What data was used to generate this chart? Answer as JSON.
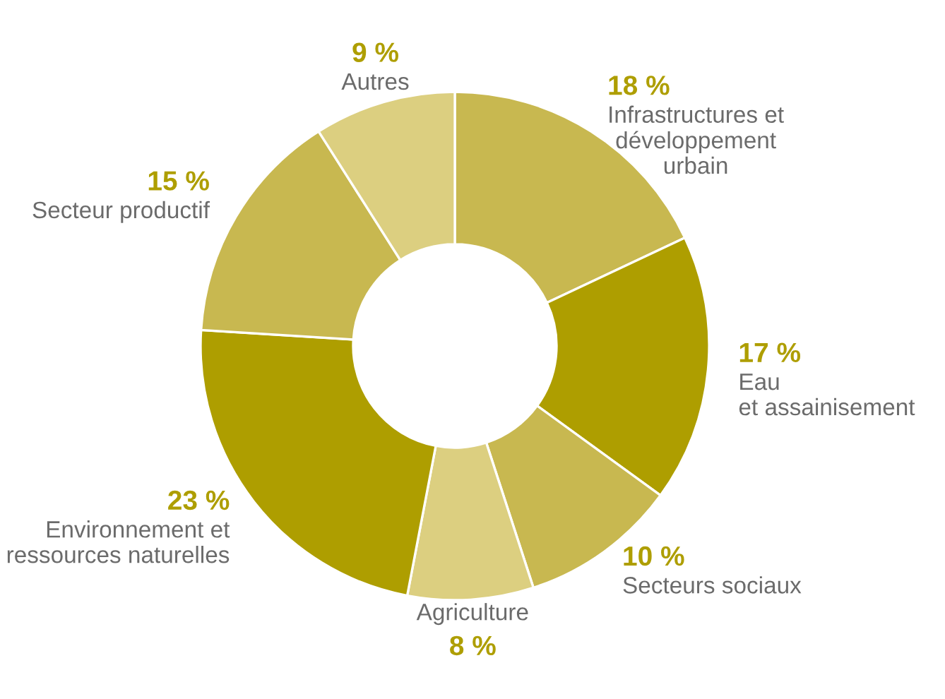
{
  "chart_data": {
    "type": "donut",
    "categories": [
      "Infrastructures et\ndéveloppement\nurbain",
      "Eau\net assainisement",
      "Secteurs sociaux",
      "Agriculture",
      "Environnement et\nressources naturelles",
      "Secteur productif",
      "Autres"
    ],
    "values": [
      18,
      17,
      10,
      8,
      23,
      15,
      9
    ],
    "value_labels": [
      "18 %",
      "17 %",
      "10 %",
      "8 %",
      "23 %",
      "15 %",
      "9 %"
    ],
    "colors": [
      "#c8b850",
      "#ae9e00",
      "#c8b850",
      "#dccf80",
      "#ae9e00",
      "#c8b850",
      "#dccf80"
    ],
    "legend": false
  }
}
